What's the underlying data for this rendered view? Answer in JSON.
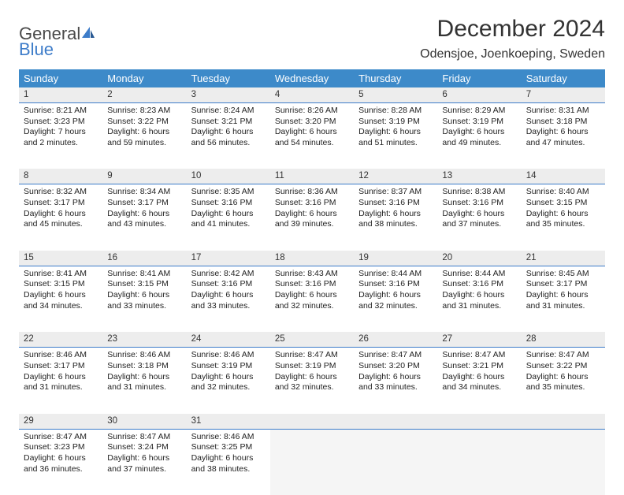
{
  "logo": {
    "line1": "General",
    "line2": "Blue"
  },
  "header": {
    "title": "December 2024",
    "location": "Odensjoe, Joenkoeping, Sweden"
  },
  "colors": {
    "header_bg": "#3d8ac9",
    "header_text": "#ffffff",
    "daynum_bg": "#ededed",
    "daynum_border": "#3d7cc9",
    "body_text": "#222222",
    "logo_gray": "#4a4a4a",
    "logo_blue": "#3d7cc9"
  },
  "typography": {
    "title_fontsize": 30,
    "location_fontsize": 16,
    "dayheader_fontsize": 13,
    "daynum_fontsize": 11.5,
    "cell_fontsize": 10.5
  },
  "weekdays": [
    "Sunday",
    "Monday",
    "Tuesday",
    "Wednesday",
    "Thursday",
    "Friday",
    "Saturday"
  ],
  "weeks": [
    [
      {
        "n": "1",
        "sr": "Sunrise: 8:21 AM",
        "ss": "Sunset: 3:23 PM",
        "dl": "Daylight: 7 hours and 2 minutes."
      },
      {
        "n": "2",
        "sr": "Sunrise: 8:23 AM",
        "ss": "Sunset: 3:22 PM",
        "dl": "Daylight: 6 hours and 59 minutes."
      },
      {
        "n": "3",
        "sr": "Sunrise: 8:24 AM",
        "ss": "Sunset: 3:21 PM",
        "dl": "Daylight: 6 hours and 56 minutes."
      },
      {
        "n": "4",
        "sr": "Sunrise: 8:26 AM",
        "ss": "Sunset: 3:20 PM",
        "dl": "Daylight: 6 hours and 54 minutes."
      },
      {
        "n": "5",
        "sr": "Sunrise: 8:28 AM",
        "ss": "Sunset: 3:19 PM",
        "dl": "Daylight: 6 hours and 51 minutes."
      },
      {
        "n": "6",
        "sr": "Sunrise: 8:29 AM",
        "ss": "Sunset: 3:19 PM",
        "dl": "Daylight: 6 hours and 49 minutes."
      },
      {
        "n": "7",
        "sr": "Sunrise: 8:31 AM",
        "ss": "Sunset: 3:18 PM",
        "dl": "Daylight: 6 hours and 47 minutes."
      }
    ],
    [
      {
        "n": "8",
        "sr": "Sunrise: 8:32 AM",
        "ss": "Sunset: 3:17 PM",
        "dl": "Daylight: 6 hours and 45 minutes."
      },
      {
        "n": "9",
        "sr": "Sunrise: 8:34 AM",
        "ss": "Sunset: 3:17 PM",
        "dl": "Daylight: 6 hours and 43 minutes."
      },
      {
        "n": "10",
        "sr": "Sunrise: 8:35 AM",
        "ss": "Sunset: 3:16 PM",
        "dl": "Daylight: 6 hours and 41 minutes."
      },
      {
        "n": "11",
        "sr": "Sunrise: 8:36 AM",
        "ss": "Sunset: 3:16 PM",
        "dl": "Daylight: 6 hours and 39 minutes."
      },
      {
        "n": "12",
        "sr": "Sunrise: 8:37 AM",
        "ss": "Sunset: 3:16 PM",
        "dl": "Daylight: 6 hours and 38 minutes."
      },
      {
        "n": "13",
        "sr": "Sunrise: 8:38 AM",
        "ss": "Sunset: 3:16 PM",
        "dl": "Daylight: 6 hours and 37 minutes."
      },
      {
        "n": "14",
        "sr": "Sunrise: 8:40 AM",
        "ss": "Sunset: 3:15 PM",
        "dl": "Daylight: 6 hours and 35 minutes."
      }
    ],
    [
      {
        "n": "15",
        "sr": "Sunrise: 8:41 AM",
        "ss": "Sunset: 3:15 PM",
        "dl": "Daylight: 6 hours and 34 minutes."
      },
      {
        "n": "16",
        "sr": "Sunrise: 8:41 AM",
        "ss": "Sunset: 3:15 PM",
        "dl": "Daylight: 6 hours and 33 minutes."
      },
      {
        "n": "17",
        "sr": "Sunrise: 8:42 AM",
        "ss": "Sunset: 3:16 PM",
        "dl": "Daylight: 6 hours and 33 minutes."
      },
      {
        "n": "18",
        "sr": "Sunrise: 8:43 AM",
        "ss": "Sunset: 3:16 PM",
        "dl": "Daylight: 6 hours and 32 minutes."
      },
      {
        "n": "19",
        "sr": "Sunrise: 8:44 AM",
        "ss": "Sunset: 3:16 PM",
        "dl": "Daylight: 6 hours and 32 minutes."
      },
      {
        "n": "20",
        "sr": "Sunrise: 8:44 AM",
        "ss": "Sunset: 3:16 PM",
        "dl": "Daylight: 6 hours and 31 minutes."
      },
      {
        "n": "21",
        "sr": "Sunrise: 8:45 AM",
        "ss": "Sunset: 3:17 PM",
        "dl": "Daylight: 6 hours and 31 minutes."
      }
    ],
    [
      {
        "n": "22",
        "sr": "Sunrise: 8:46 AM",
        "ss": "Sunset: 3:17 PM",
        "dl": "Daylight: 6 hours and 31 minutes."
      },
      {
        "n": "23",
        "sr": "Sunrise: 8:46 AM",
        "ss": "Sunset: 3:18 PM",
        "dl": "Daylight: 6 hours and 31 minutes."
      },
      {
        "n": "24",
        "sr": "Sunrise: 8:46 AM",
        "ss": "Sunset: 3:19 PM",
        "dl": "Daylight: 6 hours and 32 minutes."
      },
      {
        "n": "25",
        "sr": "Sunrise: 8:47 AM",
        "ss": "Sunset: 3:19 PM",
        "dl": "Daylight: 6 hours and 32 minutes."
      },
      {
        "n": "26",
        "sr": "Sunrise: 8:47 AM",
        "ss": "Sunset: 3:20 PM",
        "dl": "Daylight: 6 hours and 33 minutes."
      },
      {
        "n": "27",
        "sr": "Sunrise: 8:47 AM",
        "ss": "Sunset: 3:21 PM",
        "dl": "Daylight: 6 hours and 34 minutes."
      },
      {
        "n": "28",
        "sr": "Sunrise: 8:47 AM",
        "ss": "Sunset: 3:22 PM",
        "dl": "Daylight: 6 hours and 35 minutes."
      }
    ],
    [
      {
        "n": "29",
        "sr": "Sunrise: 8:47 AM",
        "ss": "Sunset: 3:23 PM",
        "dl": "Daylight: 6 hours and 36 minutes."
      },
      {
        "n": "30",
        "sr": "Sunrise: 8:47 AM",
        "ss": "Sunset: 3:24 PM",
        "dl": "Daylight: 6 hours and 37 minutes."
      },
      {
        "n": "31",
        "sr": "Sunrise: 8:46 AM",
        "ss": "Sunset: 3:25 PM",
        "dl": "Daylight: 6 hours and 38 minutes."
      },
      null,
      null,
      null,
      null
    ]
  ]
}
